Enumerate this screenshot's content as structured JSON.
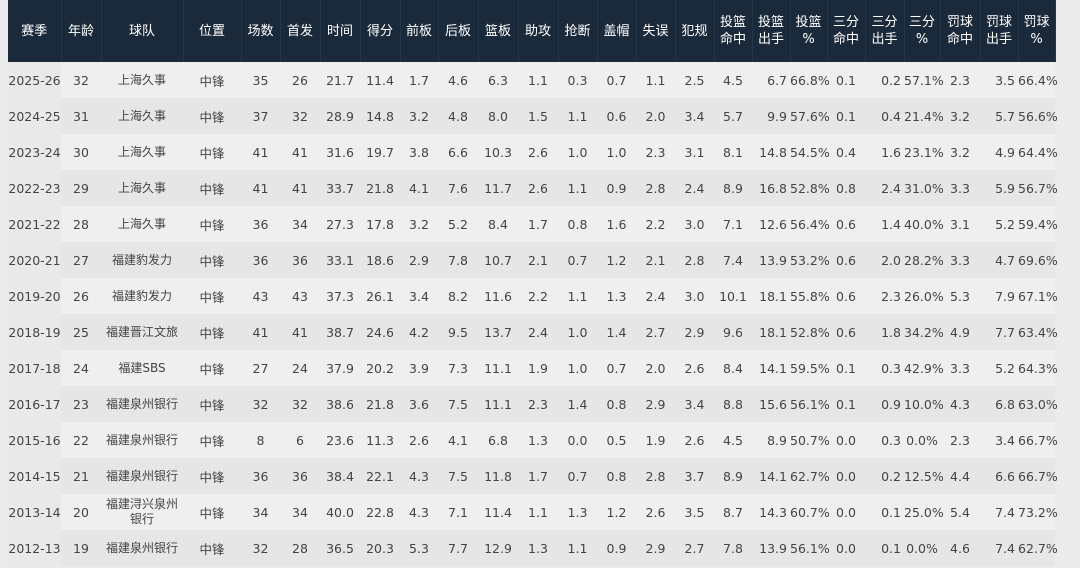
{
  "table": {
    "headers": [
      "赛季",
      "年龄",
      "球队",
      "位置",
      "场数",
      "首发",
      "时间",
      "得分",
      "前板",
      "后板",
      "篮板",
      "助攻",
      "抢断",
      "盖帽",
      "失误",
      "犯规",
      "投篮\n命中",
      "投篮\n出手",
      "投篮\n%",
      "三分\n命中",
      "三分\n出手",
      "三分\n%",
      "罚球\n命中",
      "罚球\n出手",
      "罚球\n%"
    ],
    "rows": [
      [
        "2025-26",
        "32",
        "上海久事",
        "中锋",
        "35",
        "26",
        "21.7",
        "11.4",
        "1.7",
        "4.6",
        "6.3",
        "1.1",
        "0.3",
        "0.7",
        "1.1",
        "2.5",
        "4.5",
        "6.7",
        "66.8%",
        "0.1",
        "0.2",
        "57.1%",
        "2.3",
        "3.5",
        "66.4%"
      ],
      [
        "2024-25",
        "31",
        "上海久事",
        "中锋",
        "37",
        "32",
        "28.9",
        "14.8",
        "3.2",
        "4.8",
        "8.0",
        "1.5",
        "1.1",
        "0.6",
        "2.0",
        "3.4",
        "5.7",
        "9.9",
        "57.6%",
        "0.1",
        "0.4",
        "21.4%",
        "3.2",
        "5.7",
        "56.6%"
      ],
      [
        "2023-24",
        "30",
        "上海久事",
        "中锋",
        "41",
        "41",
        "31.6",
        "19.7",
        "3.8",
        "6.6",
        "10.3",
        "2.6",
        "1.0",
        "1.0",
        "2.3",
        "3.1",
        "8.1",
        "14.8",
        "54.5%",
        "0.4",
        "1.6",
        "23.1%",
        "3.2",
        "4.9",
        "64.4%"
      ],
      [
        "2022-23",
        "29",
        "上海久事",
        "中锋",
        "41",
        "41",
        "33.7",
        "21.8",
        "4.1",
        "7.6",
        "11.7",
        "2.6",
        "1.1",
        "0.9",
        "2.8",
        "2.4",
        "8.9",
        "16.8",
        "52.8%",
        "0.8",
        "2.4",
        "31.0%",
        "3.3",
        "5.9",
        "56.7%"
      ],
      [
        "2021-22",
        "28",
        "上海久事",
        "中锋",
        "36",
        "34",
        "27.3",
        "17.8",
        "3.2",
        "5.2",
        "8.4",
        "1.7",
        "0.8",
        "1.6",
        "2.2",
        "3.0",
        "7.1",
        "12.6",
        "56.4%",
        "0.6",
        "1.4",
        "40.0%",
        "3.1",
        "5.2",
        "59.4%"
      ],
      [
        "2020-21",
        "27",
        "福建豹发力",
        "中锋",
        "36",
        "36",
        "33.1",
        "18.6",
        "2.9",
        "7.8",
        "10.7",
        "2.1",
        "0.7",
        "1.2",
        "2.1",
        "2.8",
        "7.4",
        "13.9",
        "53.2%",
        "0.6",
        "2.0",
        "28.2%",
        "3.3",
        "4.7",
        "69.6%"
      ],
      [
        "2019-20",
        "26",
        "福建豹发力",
        "中锋",
        "43",
        "43",
        "37.3",
        "26.1",
        "3.4",
        "8.2",
        "11.6",
        "2.2",
        "1.1",
        "1.3",
        "2.4",
        "3.0",
        "10.1",
        "18.1",
        "55.8%",
        "0.6",
        "2.3",
        "26.0%",
        "5.3",
        "7.9",
        "67.1%"
      ],
      [
        "2018-19",
        "25",
        "福建晋江文旅",
        "中锋",
        "41",
        "41",
        "38.7",
        "24.6",
        "4.2",
        "9.5",
        "13.7",
        "2.4",
        "1.0",
        "1.4",
        "2.7",
        "2.9",
        "9.6",
        "18.1",
        "52.8%",
        "0.6",
        "1.8",
        "34.2%",
        "4.9",
        "7.7",
        "63.4%"
      ],
      [
        "2017-18",
        "24",
        "福建SBS",
        "中锋",
        "27",
        "24",
        "37.9",
        "20.2",
        "3.9",
        "7.3",
        "11.1",
        "1.9",
        "1.0",
        "0.7",
        "2.0",
        "2.6",
        "8.4",
        "14.1",
        "59.5%",
        "0.1",
        "0.3",
        "42.9%",
        "3.3",
        "5.2",
        "64.3%"
      ],
      [
        "2016-17",
        "23",
        "福建泉州银行",
        "中锋",
        "32",
        "32",
        "38.6",
        "21.8",
        "3.6",
        "7.5",
        "11.1",
        "2.3",
        "1.4",
        "0.8",
        "2.9",
        "3.4",
        "8.8",
        "15.6",
        "56.1%",
        "0.1",
        "0.9",
        "10.0%",
        "4.3",
        "6.8",
        "63.0%"
      ],
      [
        "2015-16",
        "22",
        "福建泉州银行",
        "中锋",
        "8",
        "6",
        "23.6",
        "11.3",
        "2.6",
        "4.1",
        "6.8",
        "1.3",
        "0.0",
        "0.5",
        "1.9",
        "2.6",
        "4.5",
        "8.9",
        "50.7%",
        "0.0",
        "0.3",
        "0.0%",
        "2.3",
        "3.4",
        "66.7%"
      ],
      [
        "2014-15",
        "21",
        "福建泉州银行",
        "中锋",
        "36",
        "36",
        "38.4",
        "22.1",
        "4.3",
        "7.5",
        "11.8",
        "1.7",
        "0.7",
        "0.8",
        "2.8",
        "3.7",
        "8.9",
        "14.1",
        "62.7%",
        "0.0",
        "0.2",
        "12.5%",
        "4.4",
        "6.6",
        "66.7%"
      ],
      [
        "2013-14",
        "20",
        "福建浔兴泉州银行",
        "中锋",
        "34",
        "34",
        "40.0",
        "22.8",
        "4.3",
        "7.1",
        "11.4",
        "1.1",
        "1.3",
        "1.2",
        "2.6",
        "3.5",
        "8.7",
        "14.3",
        "60.7%",
        "0.0",
        "0.1",
        "25.0%",
        "5.4",
        "7.4",
        "73.2%"
      ],
      [
        "2012-13",
        "19",
        "福建泉州银行",
        "中锋",
        "32",
        "28",
        "36.5",
        "20.3",
        "5.3",
        "7.7",
        "12.9",
        "1.3",
        "1.1",
        "0.9",
        "2.9",
        "2.7",
        "7.8",
        "13.9",
        "56.1%",
        "0.0",
        "0.1",
        "0.0%",
        "4.6",
        "7.4",
        "62.7%"
      ]
    ]
  },
  "colors": {
    "header_bg": "#1b2a3b",
    "row_odd": "#efefef",
    "row_even": "#e6e6e6"
  }
}
